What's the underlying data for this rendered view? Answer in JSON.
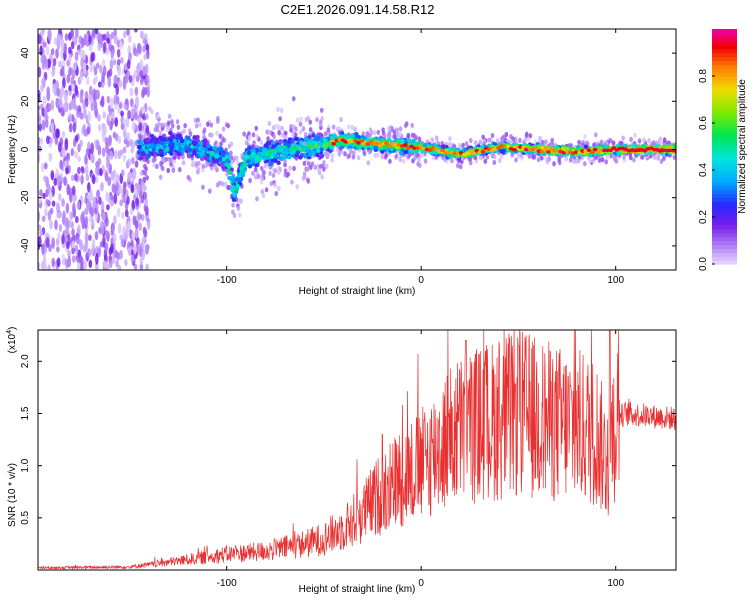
{
  "title": "C2E1.2026.091.14.58.R12",
  "chart_data": [
    {
      "type": "heatmap",
      "name": "spectrogram",
      "xlabel": "Height of straight line (km)",
      "ylabel": "Frequency (Hz)",
      "xlim": [
        -197,
        131
      ],
      "ylim": [
        -50,
        50
      ],
      "xticks": [
        "-100",
        "0",
        "100"
      ],
      "xtick_values": [
        -100,
        0,
        100
      ],
      "yticks": [
        "-40",
        "-20",
        "0",
        "20",
        "40"
      ],
      "ytick_values": [
        -40,
        -20,
        0,
        20,
        40
      ],
      "colorbar": {
        "label": "Normalized spectral amplitude",
        "range": [
          0,
          1
        ],
        "ticks": [
          "0.0",
          "0.2",
          "0.4",
          "0.6",
          "0.8"
        ],
        "tick_values": [
          0.0,
          0.2,
          0.4,
          0.6,
          0.8
        ]
      },
      "ridge_center": [
        {
          "x": -150,
          "y": 0
        },
        {
          "x": -120,
          "y": 2
        },
        {
          "x": -100,
          "y": -4
        },
        {
          "x": -96,
          "y": -18
        },
        {
          "x": -90,
          "y": -4
        },
        {
          "x": -70,
          "y": 0
        },
        {
          "x": -50,
          "y": 2
        },
        {
          "x": -40,
          "y": 4
        },
        {
          "x": -20,
          "y": 2
        },
        {
          "x": 0,
          "y": 1
        },
        {
          "x": 20,
          "y": -2
        },
        {
          "x": 40,
          "y": 1
        },
        {
          "x": 60,
          "y": 0
        },
        {
          "x": 80,
          "y": -1
        },
        {
          "x": 100,
          "y": 0
        },
        {
          "x": 131,
          "y": 0
        }
      ]
    },
    {
      "type": "line",
      "name": "snr",
      "xlabel": "Height of straight line (km)",
      "ylabel": "SNR (10 * v/v)",
      "scale_note": "(x10",
      "scale_exp": "4",
      "xlim": [
        -197,
        131
      ],
      "ylim": [
        0,
        2.3
      ],
      "xticks": [
        "-100",
        "0",
        "100"
      ],
      "xtick_values": [
        -100,
        0,
        100
      ],
      "yticks": [
        "0.5",
        "1.0",
        "1.5",
        "2.0"
      ],
      "ytick_values": [
        0.5,
        1.0,
        1.5,
        2.0
      ],
      "color": "#e83030",
      "series": [
        {
          "name": "SNR envelope",
          "x": [
            -197,
            -150,
            -140,
            -120,
            -100,
            -80,
            -60,
            -50,
            -40,
            -30,
            -20,
            -10,
            0,
            10,
            20,
            30,
            40,
            50,
            60,
            70,
            80,
            90,
            96,
            98,
            100,
            105,
            131
          ],
          "y": [
            0.02,
            0.03,
            0.05,
            0.1,
            0.15,
            0.18,
            0.25,
            0.3,
            0.4,
            0.55,
            0.75,
            0.9,
            1.0,
            1.2,
            1.35,
            1.4,
            1.45,
            1.5,
            1.45,
            1.4,
            1.38,
            1.32,
            1.0,
            1.3,
            1.45,
            1.5,
            1.45
          ]
        }
      ],
      "peaks": [
        {
          "x": -20,
          "y": 1.3
        },
        {
          "x": 23,
          "y": 2.2
        },
        {
          "x": 50,
          "y": 2.15
        },
        {
          "x": 97,
          "y": 2.3
        }
      ]
    }
  ]
}
